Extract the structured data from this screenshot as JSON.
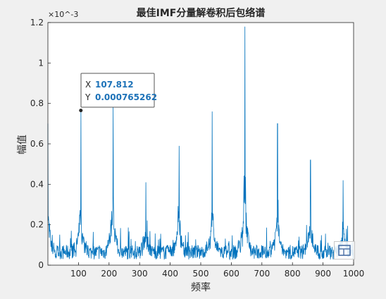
{
  "chart_data": {
    "type": "line",
    "title": "最佳IMF分量解卷积后包络谱",
    "xlabel": "频率",
    "ylabel": "幅值",
    "xlim": [
      0,
      1000
    ],
    "ylim": [
      0,
      0.0012
    ],
    "y_exponent_label": "×10^-3",
    "x_ticks": [
      "100",
      "200",
      "300",
      "400",
      "500",
      "600",
      "700",
      "800",
      "900",
      "1000"
    ],
    "y_ticks": [
      "0",
      "0.2",
      "0.4",
      "0.6",
      "0.8",
      "1",
      "1.2"
    ],
    "grid": false,
    "line_color": "#0072bd",
    "peaks": [
      {
        "x": 0,
        "y": 0.0007
      },
      {
        "x": 107.8,
        "y": 0.000765
      },
      {
        "x": 213,
        "y": 0.00078
      },
      {
        "x": 320,
        "y": 0.00041
      },
      {
        "x": 429,
        "y": 0.00059
      },
      {
        "x": 537,
        "y": 0.00076
      },
      {
        "x": 644,
        "y": 0.00118
      },
      {
        "x": 751,
        "y": 0.0007
      },
      {
        "x": 859,
        "y": 0.00052
      },
      {
        "x": 966,
        "y": 0.00042
      }
    ],
    "baseline_level": 8e-05,
    "datatip": {
      "x_key": "X",
      "y_key": "Y",
      "x_value": "107.812",
      "y_value": "0.000765262"
    }
  },
  "colors": {
    "background": "#f0f0f0",
    "axes_background": "#ffffff",
    "axis": "#262626"
  },
  "icons": {
    "toolbar": "axes-toolbar-icon"
  }
}
